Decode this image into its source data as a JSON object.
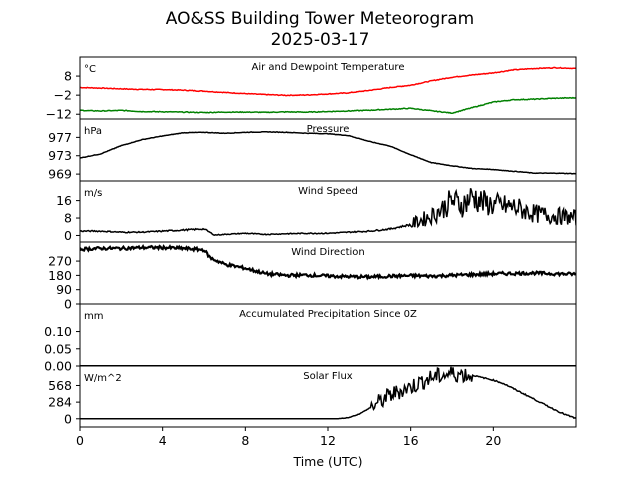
{
  "figure": {
    "title": "AO&SS Building Tower Meteorogram",
    "subtitle": "2025-03-17",
    "xlabel": "Time (UTC)"
  },
  "chart_data": [
    {
      "type": "line",
      "title": "Air and Dewpoint Temperature",
      "unit": "°C",
      "yticks": [
        8,
        -2,
        -12
      ],
      "yticklabels": [
        "8",
        "−2",
        "−12"
      ],
      "ylim": [
        -14.5,
        18
      ],
      "xlim": [
        0,
        24
      ],
      "series": [
        {
          "color": "#ff0000",
          "x": [
            0,
            1,
            2,
            3,
            4,
            5,
            6,
            7,
            8,
            9,
            10,
            11,
            12,
            13,
            14,
            15,
            16,
            17,
            18,
            19,
            20,
            21,
            22,
            23,
            24
          ],
          "values": [
            2.0,
            1.7,
            1.3,
            1.0,
            0.9,
            0.6,
            0.1,
            -0.6,
            -1.2,
            -1.7,
            -2.1,
            -1.9,
            -1.4,
            -0.8,
            0.5,
            2.0,
            3.2,
            5.5,
            7.4,
            8.6,
            9.7,
            11.3,
            12.0,
            12.4,
            12.0
          ]
        },
        {
          "color": "#008000",
          "x": [
            0,
            1,
            2,
            3,
            4,
            5,
            6,
            7,
            8,
            9,
            10,
            11,
            12,
            13,
            14,
            15,
            16,
            17,
            18,
            19,
            20,
            21,
            22,
            23,
            24
          ],
          "values": [
            -10.0,
            -10.3,
            -10.0,
            -10.6,
            -10.7,
            -10.9,
            -11.1,
            -10.9,
            -10.9,
            -11.0,
            -10.8,
            -10.9,
            -10.6,
            -10.3,
            -9.9,
            -9.4,
            -8.9,
            -10.2,
            -11.4,
            -8.5,
            -5.6,
            -4.4,
            -4.1,
            -3.6,
            -3.4
          ]
        }
      ]
    },
    {
      "type": "line",
      "title": "Pressure",
      "unit": "hPa",
      "yticks": [
        977,
        973,
        969
      ],
      "yticklabels": [
        "977",
        "973",
        "969"
      ],
      "ylim": [
        967.5,
        981
      ],
      "xlim": [
        0,
        24
      ],
      "series": [
        {
          "color": "#000000",
          "x": [
            0,
            1,
            2,
            3,
            4,
            5,
            6,
            7,
            8,
            9,
            10,
            11,
            12,
            13,
            14,
            15,
            16,
            17,
            18,
            19,
            20,
            21,
            22,
            23,
            24
          ],
          "values": [
            972.5,
            973.4,
            975.2,
            976.5,
            977.3,
            978.0,
            978.1,
            977.9,
            978.1,
            978.2,
            978.1,
            977.9,
            977.8,
            977.4,
            976.1,
            975.1,
            973.2,
            971.5,
            970.8,
            970.2,
            970.0,
            969.6,
            969.2,
            969.2,
            969.1
          ]
        }
      ]
    },
    {
      "type": "line",
      "title": "Wind Speed",
      "unit": "m/s",
      "yticks": [
        16,
        8,
        0
      ],
      "yticklabels": [
        "16",
        "8",
        "0"
      ],
      "ylim": [
        -3,
        25
      ],
      "xlim": [
        0,
        24
      ],
      "series": [
        {
          "color": "#000000",
          "x": [
            0,
            1,
            2,
            3,
            4,
            5,
            6,
            6.5,
            7,
            8,
            9,
            10,
            11,
            12,
            13,
            14,
            15,
            16,
            17,
            17.5,
            18,
            18.5,
            19,
            19.5,
            20,
            21,
            22,
            23,
            24
          ],
          "values": [
            2,
            2,
            1.5,
            1.5,
            2,
            2.5,
            3,
            0.2,
            0.5,
            1,
            0.5,
            0.8,
            1,
            1,
            1.5,
            2,
            3,
            5,
            9,
            12,
            16,
            14,
            18,
            15,
            14,
            13,
            10,
            9,
            8
          ]
        }
      ]
    },
    {
      "type": "line",
      "title": "Wind Direction",
      "unit": "",
      "yticks": [
        270,
        180,
        90,
        0
      ],
      "yticklabels": [
        "270",
        "180",
        "90",
        "0"
      ],
      "ylim": [
        0,
        390
      ],
      "xlim": [
        0,
        24
      ],
      "series": [
        {
          "color": "#000000",
          "x": [
            0,
            1,
            2,
            3,
            4,
            5,
            6,
            6.3,
            7,
            8,
            9,
            10,
            11,
            12,
            13,
            14,
            15,
            16,
            17,
            18,
            19,
            20,
            21,
            22,
            23,
            24
          ],
          "values": [
            345,
            350,
            350,
            355,
            355,
            350,
            340,
            290,
            250,
            225,
            190,
            180,
            182,
            176,
            172,
            170,
            175,
            178,
            175,
            180,
            185,
            190,
            192,
            195,
            190,
            188
          ]
        }
      ]
    },
    {
      "type": "line",
      "title": "Accumulated Precipitation Since 0Z",
      "unit": "mm",
      "yticks": [
        0.1,
        0.05,
        0.0
      ],
      "yticklabels": [
        "0.10",
        "0.05",
        "0.00"
      ],
      "ylim": [
        0,
        0.18
      ],
      "xlim": [
        0,
        24
      ],
      "series": [
        {
          "color": "#000000",
          "x": [
            0,
            24
          ],
          "values": [
            0,
            0
          ]
        }
      ]
    },
    {
      "type": "line",
      "title": "Solar Flux",
      "unit": "W/m^2",
      "yticks": [
        568,
        284,
        0
      ],
      "yticklabels": [
        "568",
        "284",
        "0"
      ],
      "ylim": [
        -140,
        900
      ],
      "xlim": [
        0,
        24
      ],
      "series": [
        {
          "color": "#000000",
          "x": [
            0,
            12.5,
            13,
            13.5,
            14,
            14.5,
            15,
            15.5,
            16,
            16.5,
            17,
            17.5,
            18,
            18.5,
            19,
            19.5,
            20,
            20.5,
            21,
            21.5,
            22,
            22.5,
            23,
            23.5,
            24
          ],
          "values": [
            0,
            0,
            20,
            80,
            180,
            290,
            400,
            480,
            540,
            630,
            700,
            740,
            770,
            760,
            740,
            700,
            660,
            600,
            510,
            420,
            330,
            240,
            150,
            70,
            5
          ]
        }
      ]
    }
  ]
}
